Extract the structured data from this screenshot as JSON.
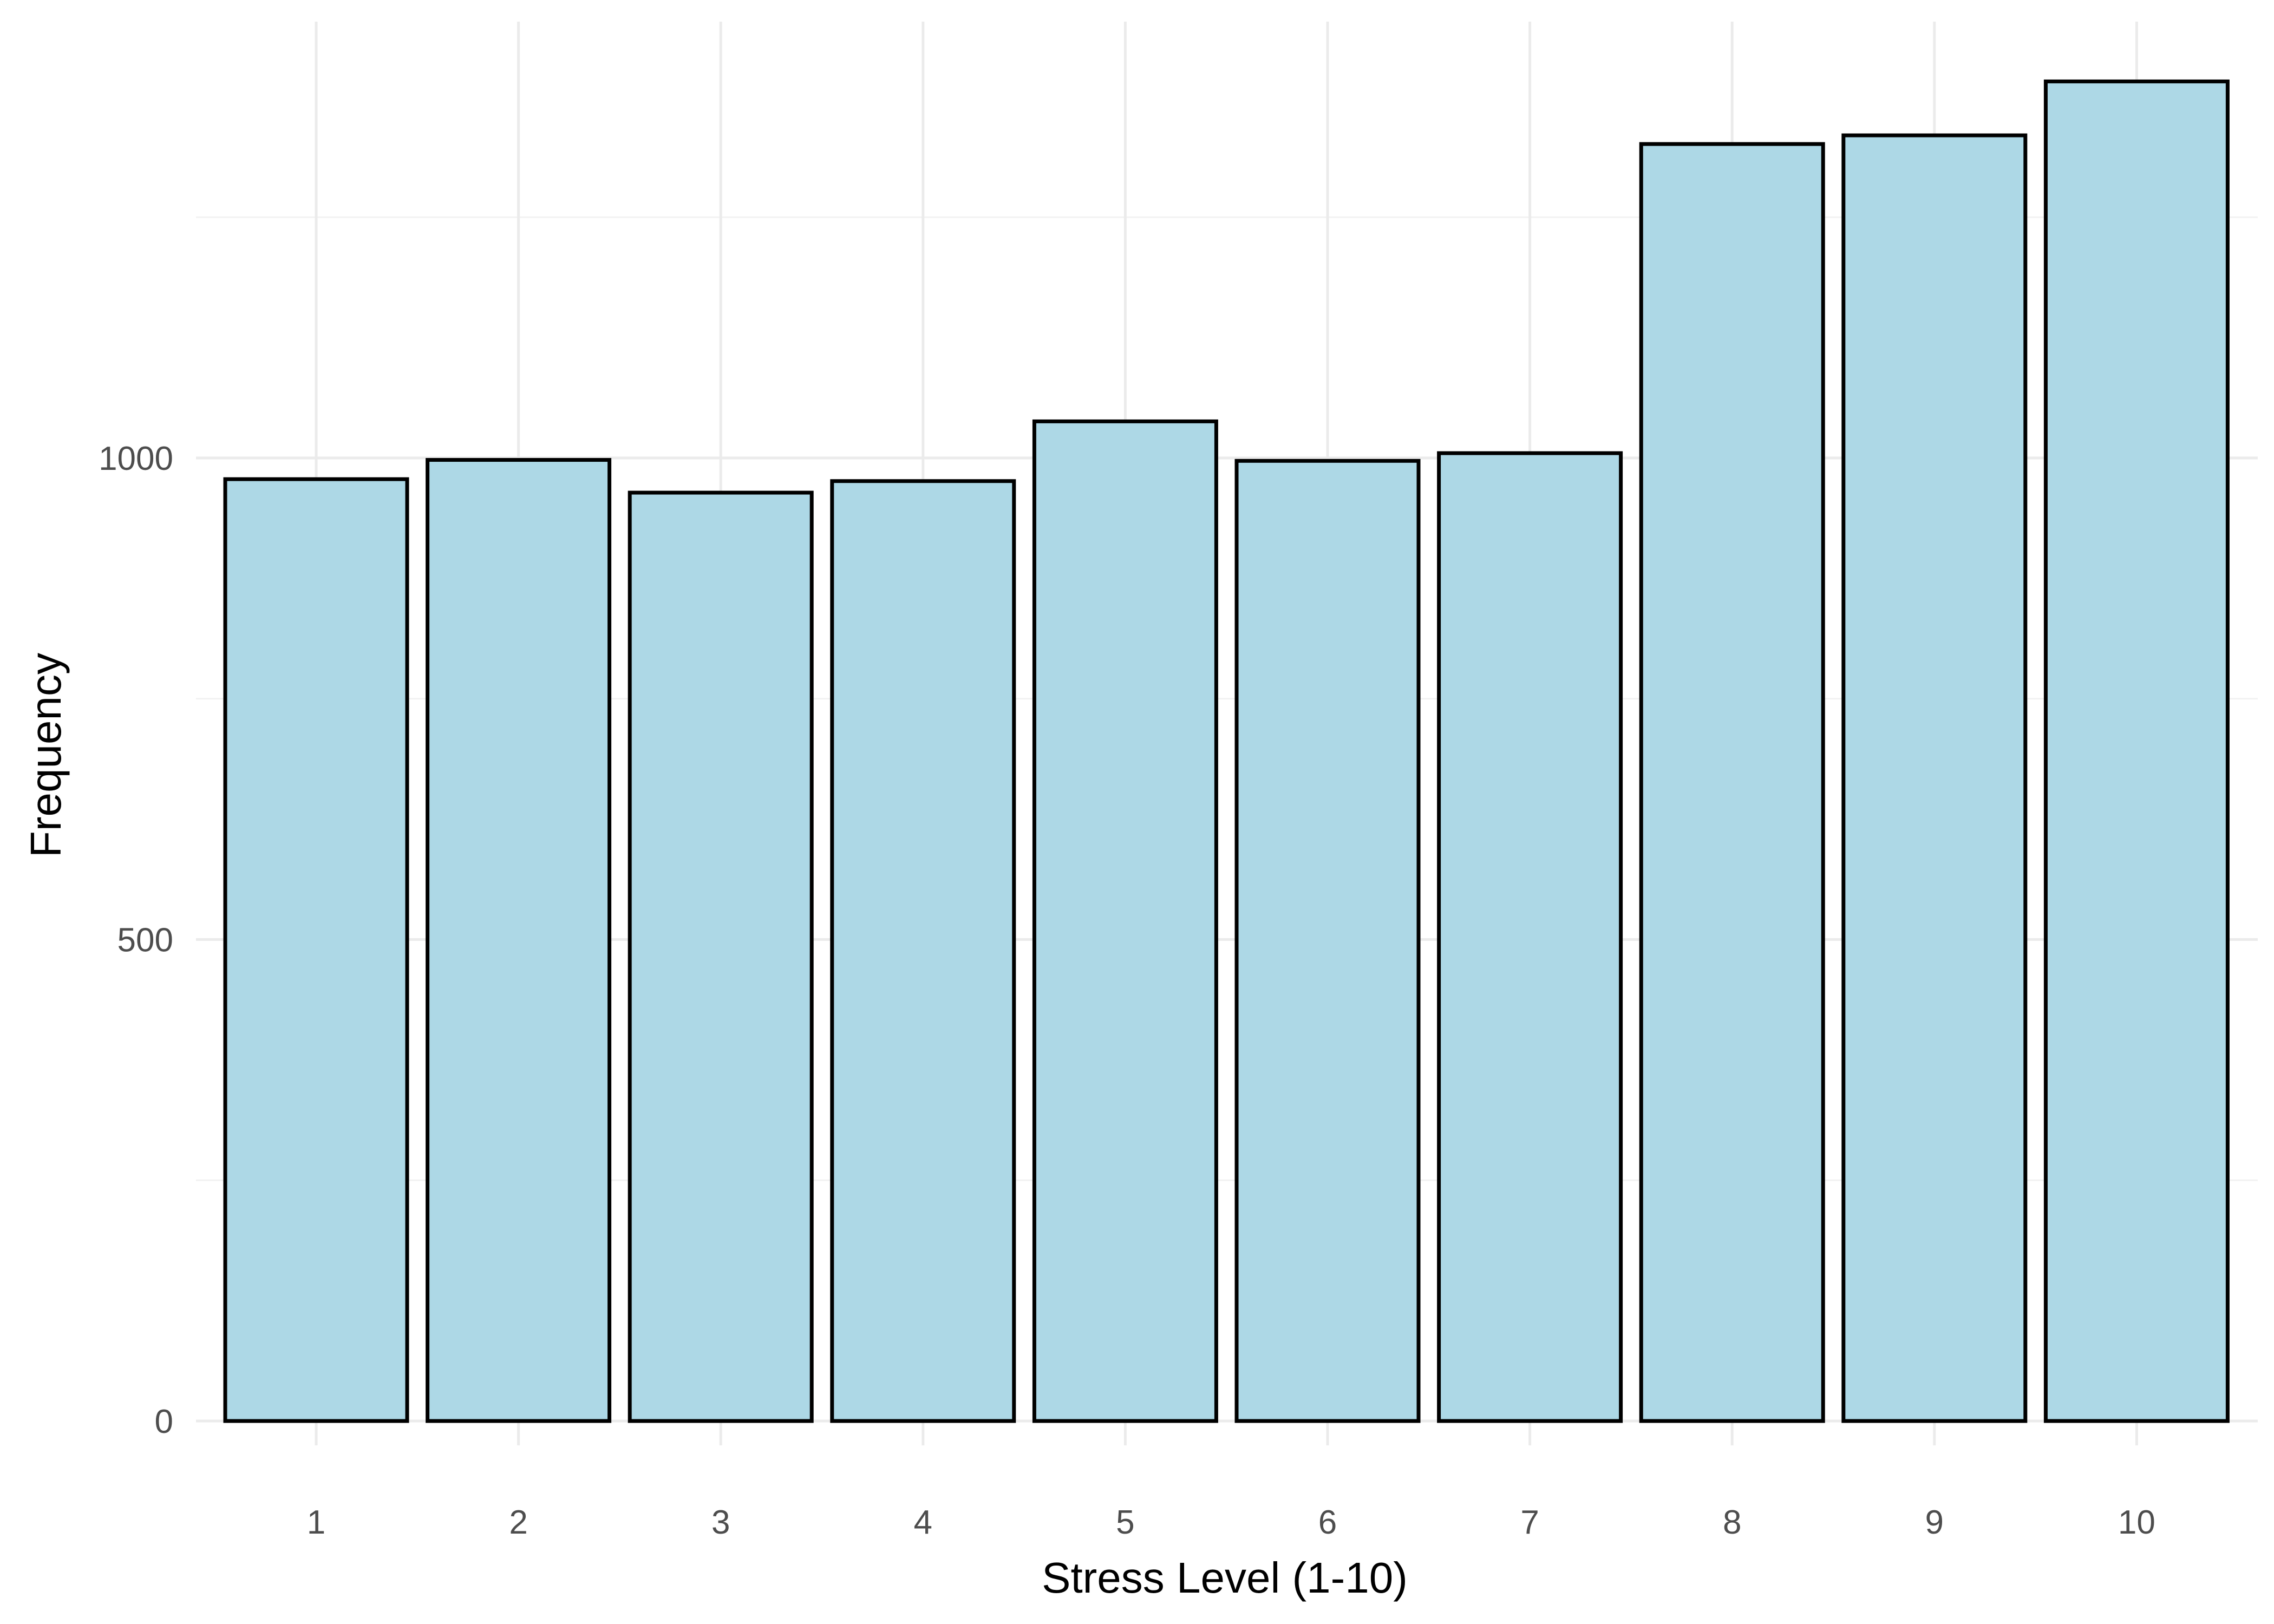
{
  "chart_data": {
    "type": "bar",
    "xlabel": "Stress Level (1-10)",
    "ylabel": "Frequency",
    "categories": [
      "1",
      "2",
      "3",
      "4",
      "5",
      "6",
      "7",
      "8",
      "9",
      "10"
    ],
    "values": [
      978,
      998,
      964,
      976,
      1038,
      997,
      1005,
      1326,
      1335,
      1391
    ],
    "ylim": [
      0,
      1400
    ],
    "yticks": [
      0,
      500,
      1000
    ],
    "grid": true,
    "colors": {
      "bar_fill": "#add8e6",
      "bar_edge": "#000000"
    }
  }
}
